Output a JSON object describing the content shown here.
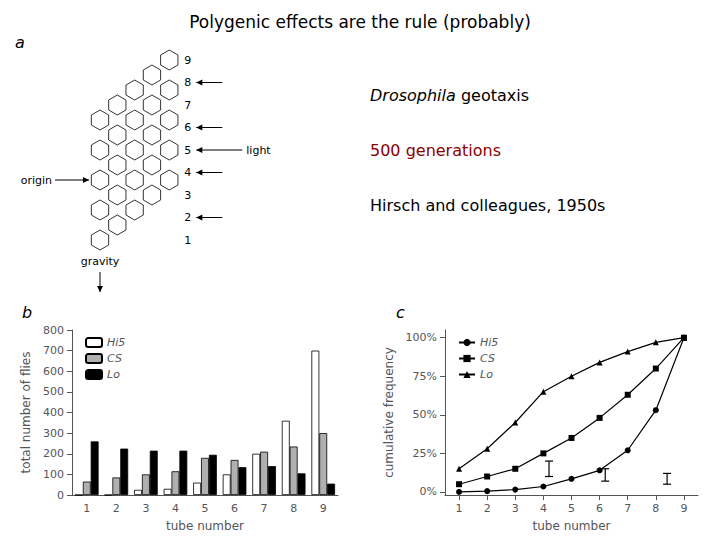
{
  "title": "Polygenic effects are the rule (probably)",
  "diagram": {
    "label": "a",
    "tube_labels": [
      1,
      2,
      3,
      4,
      5,
      6,
      7,
      8,
      9
    ],
    "arrow_tubes": [
      2,
      4,
      6,
      8
    ],
    "light": "light",
    "origin": "origin",
    "gravity": "gravity"
  },
  "text_block": [
    {
      "text": "Drosophila geotaxis"
    },
    {
      "text": "500 generations",
      "color": "#8B0000"
    },
    {
      "text": "Hirsch and colleagues, 1950s"
    }
  ],
  "chart_data": [
    {
      "type": "bar",
      "title": "b",
      "categories": [
        "1",
        "2",
        "3",
        "4",
        "5",
        "6",
        "7",
        "8",
        "9"
      ],
      "series": [
        {
          "name": "Hi5",
          "color": "#ffffff",
          "values": [
            0,
            0,
            25,
            30,
            60,
            100,
            200,
            360,
            700
          ]
        },
        {
          "name": "CS",
          "color": "#b0b0b0",
          "values": [
            65,
            85,
            100,
            115,
            180,
            170,
            210,
            235,
            300
          ]
        },
        {
          "name": "Lo",
          "color": "#000000",
          "values": [
            260,
            225,
            215,
            215,
            195,
            135,
            140,
            105,
            55
          ]
        }
      ],
      "xlabel": "tube number",
      "ylabel": "total number of flies",
      "ylim": [
        0,
        800
      ],
      "yticks": [
        0,
        100,
        200,
        300,
        400,
        500,
        600,
        700,
        800
      ],
      "grid": false,
      "legend": "upper left"
    },
    {
      "type": "line",
      "title": "c",
      "x": [
        1,
        2,
        3,
        4,
        5,
        6,
        7,
        8,
        9
      ],
      "series": [
        {
          "name": "Hi5",
          "color": "#000000",
          "marker": "circle",
          "values": [
            0.0,
            0.5,
            1.5,
            3.5,
            8.5,
            14,
            27,
            53,
            100
          ]
        },
        {
          "name": "CS",
          "color": "#000000",
          "marker": "square",
          "values": [
            5,
            10,
            15,
            25,
            35,
            48,
            63,
            80,
            100
          ]
        },
        {
          "name": "Lo",
          "color": "#000000",
          "marker": "triangle",
          "values": [
            15,
            28,
            45,
            65,
            75,
            84,
            91,
            97,
            100
          ]
        }
      ],
      "intervals": [
        {
          "x": 4.2,
          "low": 10,
          "high": 20
        },
        {
          "x": 6.2,
          "low": 7,
          "high": 15
        },
        {
          "x": 8.4,
          "low": 5,
          "high": 12
        }
      ],
      "xlabel": "tube number",
      "ylabel": "cumulative frequency",
      "xlim": [
        0.5,
        9.5
      ],
      "xticks": [
        1,
        2,
        3,
        4,
        5,
        6,
        7,
        8,
        9
      ],
      "ylim": [
        -2,
        105
      ],
      "yticks": [
        {
          "value": 0,
          "label": "0%"
        },
        {
          "value": 25,
          "label": "25%"
        },
        {
          "value": 50,
          "label": "50%"
        },
        {
          "value": 75,
          "label": "75%"
        },
        {
          "value": 100,
          "label": "100%"
        }
      ],
      "grid": false,
      "legend": "upper left"
    }
  ]
}
